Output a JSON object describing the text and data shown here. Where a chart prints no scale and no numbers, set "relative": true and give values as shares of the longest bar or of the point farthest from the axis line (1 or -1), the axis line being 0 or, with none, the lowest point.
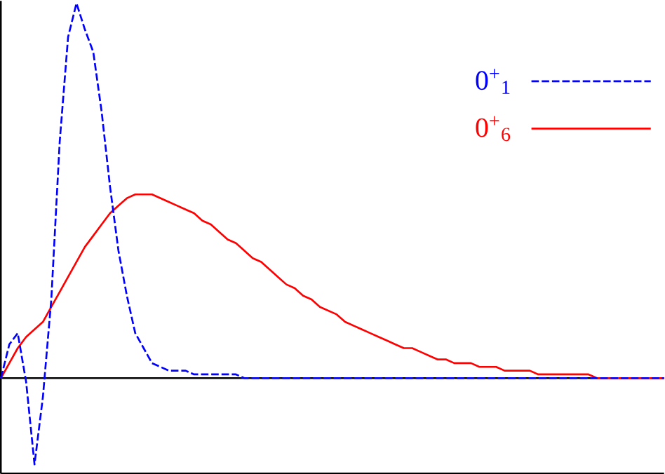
{
  "chart_data": {
    "type": "line",
    "relative": true,
    "legend": "top right",
    "categories": [
      null,
      null,
      null,
      null,
      null,
      null,
      null,
      null,
      null,
      null,
      null,
      null,
      null,
      null,
      null,
      null,
      null,
      null,
      null,
      null,
      null,
      null,
      null,
      null,
      null,
      null,
      null,
      null,
      null,
      null,
      null,
      null,
      null,
      null,
      null,
      null,
      null,
      null,
      null,
      null,
      null,
      null,
      null,
      null,
      null,
      null,
      null,
      null,
      null,
      null,
      null,
      null,
      null,
      null,
      null,
      null,
      null,
      null,
      null,
      null,
      null,
      null,
      null,
      null,
      null,
      null,
      null,
      null,
      null,
      null,
      null,
      null,
      null,
      null,
      null,
      null,
      null,
      null,
      null,
      null
    ],
    "series": [
      {
        "name": "0$^{+}$$_{1}$",
        "color": "#0000ff",
        "line_style": "dashed",
        "values": [
          0,
          0.09,
          0.12,
          -0.01,
          -0.23,
          -0.05,
          0.21,
          0.63,
          0.91,
          1,
          0.93,
          0.87,
          0.71,
          0.51,
          0.34,
          0.22,
          0.12,
          0.08,
          0.04,
          0.03,
          0.02,
          0.02,
          0.02,
          0.01,
          0.01,
          0.01,
          0.01,
          0.01,
          0.01,
          0,
          0,
          0,
          0,
          0,
          0,
          0,
          0,
          0,
          0,
          0,
          0,
          0,
          0,
          0,
          0,
          0,
          0,
          0,
          0,
          0,
          0,
          0,
          0,
          0,
          0,
          0,
          0,
          0,
          0,
          0,
          0,
          0,
          0,
          0,
          0,
          0,
          0,
          0,
          0,
          0,
          0,
          0,
          0,
          0,
          0,
          0,
          0,
          0,
          0,
          0
        ]
      },
      {
        "name": "0$^{+}$$_{6}$",
        "color": "#ff0000",
        "line_style": "solid",
        "values": [
          0,
          0.04,
          0.08,
          0.11,
          0.13,
          0.15,
          0.19,
          0.23,
          0.27,
          0.31,
          0.35,
          0.38,
          0.41,
          0.44,
          0.46,
          0.48,
          0.49,
          0.49,
          0.49,
          0.48,
          0.47,
          0.46,
          0.45,
          0.44,
          0.42,
          0.41,
          0.39,
          0.37,
          0.36,
          0.34,
          0.32,
          0.31,
          0.29,
          0.27,
          0.25,
          0.24,
          0.22,
          0.21,
          0.19,
          0.18,
          0.17,
          0.15,
          0.14,
          0.13,
          0.12,
          0.11,
          0.1,
          0.09,
          0.08,
          0.08,
          0.07,
          0.06,
          0.05,
          0.05,
          0.04,
          0.04,
          0.04,
          0.03,
          0.03,
          0.03,
          0.02,
          0.02,
          0.02,
          0.02,
          0.01,
          0.01,
          0.01,
          0.01,
          0.01,
          0.01,
          0.01,
          0,
          0,
          0,
          0,
          0,
          0,
          0,
          0,
          0
        ]
      }
    ]
  }
}
